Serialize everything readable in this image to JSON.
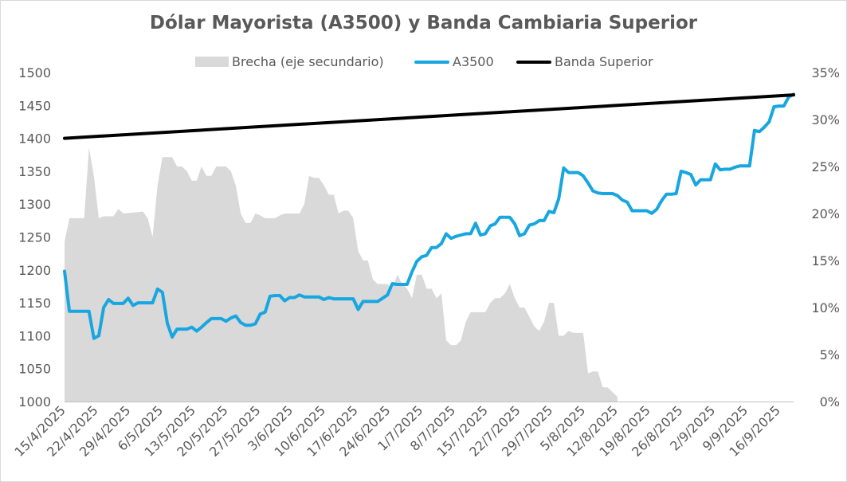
{
  "chart_data": {
    "type": "line",
    "title": "Dólar Mayorista (A3500) y Banda Cambiaria Superior",
    "legend_position": "top",
    "grid": false,
    "y_left": {
      "min": 1000,
      "max": 1500,
      "step": 50,
      "ticks": [
        "1000",
        "1050",
        "1100",
        "1150",
        "1200",
        "1250",
        "1300",
        "1350",
        "1400",
        "1450",
        "1500"
      ]
    },
    "y_right": {
      "min": 0,
      "max": 35,
      "step": 5,
      "ticks": [
        "0%",
        "5%",
        "10%",
        "15%",
        "20%",
        "25%",
        "30%",
        "35%"
      ]
    },
    "x_ticks": [
      "15/4/2025",
      "22/4/2025",
      "29/4/2025",
      "6/5/2025",
      "13/5/2025",
      "20/5/2025",
      "27/5/2025",
      "3/6/2025",
      "10/6/2025",
      "17/6/2025",
      "24/6/2025",
      "1/7/2025",
      "8/7/2025",
      "15/7/2025",
      "22/7/2025",
      "29/7/2025",
      "5/8/2025",
      "12/8/2025",
      "19/8/2025",
      "26/8/2025",
      "2/9/2025",
      "9/9/2025",
      "16/9/2025"
    ],
    "x_start": "15/4/2025",
    "x_end": "17/9/2025",
    "series": [
      {
        "name": "Brecha (eje secundario)",
        "kind": "area",
        "axis": "right",
        "color": "#d9d9d9",
        "points": [
          [
            0,
            17
          ],
          [
            1,
            19.5
          ],
          [
            4,
            19.5
          ],
          [
            5,
            27
          ],
          [
            6,
            24
          ],
          [
            7,
            19.5
          ],
          [
            8,
            19.7
          ],
          [
            10,
            19.7
          ],
          [
            11,
            20.5
          ],
          [
            12,
            20
          ],
          [
            16,
            20.2
          ],
          [
            17,
            19.5
          ],
          [
            18,
            17.5
          ],
          [
            19,
            23
          ],
          [
            20,
            26
          ],
          [
            22,
            26
          ],
          [
            23,
            25
          ],
          [
            24,
            25
          ],
          [
            25,
            24.5
          ],
          [
            26,
            23.5
          ],
          [
            27,
            23.5
          ],
          [
            28,
            25
          ],
          [
            29,
            24
          ],
          [
            30,
            24
          ],
          [
            31,
            25
          ],
          [
            33,
            25
          ],
          [
            34,
            24.5
          ],
          [
            35,
            23
          ],
          [
            36,
            20
          ],
          [
            37,
            19
          ],
          [
            38,
            19
          ],
          [
            39,
            20
          ],
          [
            40,
            19.8
          ],
          [
            41,
            19.5
          ],
          [
            43,
            19.5
          ],
          [
            44,
            19.8
          ],
          [
            45,
            20
          ],
          [
            46,
            20
          ],
          [
            47,
            20
          ],
          [
            48,
            20
          ],
          [
            49,
            21
          ],
          [
            50,
            24
          ],
          [
            51,
            23.8
          ],
          [
            52,
            23.8
          ],
          [
            53,
            23
          ],
          [
            54,
            22
          ],
          [
            55,
            22
          ],
          [
            56,
            20
          ],
          [
            57,
            20.3
          ],
          [
            58,
            20.3
          ],
          [
            59,
            19.5
          ],
          [
            60,
            16
          ],
          [
            61,
            15
          ],
          [
            62,
            15
          ],
          [
            63,
            13
          ],
          [
            64,
            12.5
          ],
          [
            65,
            12.5
          ],
          [
            66,
            12.5
          ],
          [
            67,
            12
          ],
          [
            68,
            13.5
          ],
          [
            69,
            12.5
          ],
          [
            70,
            12
          ],
          [
            71,
            11
          ],
          [
            72,
            13.5
          ],
          [
            73,
            13.5
          ],
          [
            74,
            12
          ],
          [
            75,
            12
          ],
          [
            76,
            11
          ],
          [
            77,
            11.5
          ],
          [
            78,
            6.5
          ],
          [
            79,
            6
          ],
          [
            80,
            6
          ],
          [
            81,
            6.5
          ],
          [
            82,
            8.5
          ],
          [
            83,
            9.5
          ],
          [
            84,
            9.5
          ],
          [
            85,
            9.5
          ],
          [
            86,
            9.5
          ],
          [
            87,
            10.5
          ],
          [
            88,
            11
          ],
          [
            89,
            11
          ],
          [
            90,
            11.5
          ],
          [
            91,
            12.5
          ],
          [
            92,
            11
          ],
          [
            93,
            10
          ],
          [
            94,
            10
          ],
          [
            95,
            9
          ],
          [
            96,
            8
          ],
          [
            97,
            7.5
          ],
          [
            98,
            8.5
          ],
          [
            99,
            10.5
          ],
          [
            100,
            10.5
          ],
          [
            101,
            7
          ],
          [
            102,
            7
          ],
          [
            103,
            7.5
          ],
          [
            104,
            7.3
          ],
          [
            105,
            7.3
          ],
          [
            106,
            7.3
          ],
          [
            107,
            3
          ],
          [
            108,
            3.2
          ],
          [
            109,
            3.2
          ],
          [
            110,
            1.5
          ],
          [
            111,
            1.5
          ],
          [
            112,
            1
          ],
          [
            113,
            0.5
          ]
        ]
      },
      {
        "name": "A3500",
        "kind": "line",
        "axis": "left",
        "color": "#18a6e0",
        "points": [
          [
            0,
            1198
          ],
          [
            1,
            1137
          ],
          [
            5,
            1137
          ],
          [
            6,
            1096
          ],
          [
            7,
            1100
          ],
          [
            8,
            1143
          ],
          [
            9,
            1155
          ],
          [
            10,
            1149
          ],
          [
            12,
            1149
          ],
          [
            13,
            1157
          ],
          [
            14,
            1146
          ],
          [
            15,
            1150
          ],
          [
            16,
            1150
          ],
          [
            17,
            1150
          ],
          [
            18,
            1150
          ],
          [
            19,
            1171
          ],
          [
            20,
            1166
          ],
          [
            21,
            1119
          ],
          [
            22,
            1098
          ],
          [
            23,
            1110
          ],
          [
            24,
            1110
          ],
          [
            25,
            1110
          ],
          [
            26,
            1113
          ],
          [
            27,
            1107
          ],
          [
            28,
            1113
          ],
          [
            29,
            1120
          ],
          [
            30,
            1126
          ],
          [
            31,
            1126
          ],
          [
            32,
            1126
          ],
          [
            33,
            1122
          ],
          [
            34,
            1127
          ],
          [
            35,
            1130
          ],
          [
            36,
            1120
          ],
          [
            37,
            1116
          ],
          [
            38,
            1116
          ],
          [
            39,
            1118
          ],
          [
            40,
            1133
          ],
          [
            41,
            1136
          ],
          [
            42,
            1160
          ],
          [
            43,
            1161
          ],
          [
            44,
            1161
          ],
          [
            45,
            1153
          ],
          [
            46,
            1158
          ],
          [
            47,
            1158
          ],
          [
            48,
            1162
          ],
          [
            49,
            1159
          ],
          [
            50,
            1159
          ],
          [
            51,
            1159
          ],
          [
            52,
            1159
          ],
          [
            53,
            1155
          ],
          [
            54,
            1158
          ],
          [
            55,
            1156
          ],
          [
            56,
            1156
          ],
          [
            57,
            1156
          ],
          [
            58,
            1156
          ],
          [
            59,
            1156
          ],
          [
            60,
            1140
          ],
          [
            61,
            1152
          ],
          [
            62,
            1152
          ],
          [
            63,
            1152
          ],
          [
            64,
            1152
          ],
          [
            65,
            1157
          ],
          [
            66,
            1162
          ],
          [
            67,
            1179
          ],
          [
            68,
            1178
          ],
          [
            69,
            1178
          ],
          [
            70,
            1178
          ],
          [
            71,
            1197
          ],
          [
            72,
            1213
          ],
          [
            73,
            1220
          ],
          [
            74,
            1222
          ],
          [
            75,
            1234
          ],
          [
            76,
            1234
          ],
          [
            77,
            1240
          ],
          [
            78,
            1255
          ],
          [
            79,
            1248
          ],
          [
            80,
            1251
          ],
          [
            81,
            1253
          ],
          [
            82,
            1255
          ],
          [
            83,
            1255
          ],
          [
            84,
            1271
          ],
          [
            85,
            1253
          ],
          [
            86,
            1255
          ],
          [
            87,
            1267
          ],
          [
            88,
            1270
          ],
          [
            89,
            1280
          ],
          [
            90,
            1280
          ],
          [
            91,
            1280
          ],
          [
            92,
            1270
          ],
          [
            93,
            1252
          ],
          [
            94,
            1255
          ],
          [
            95,
            1268
          ],
          [
            96,
            1270
          ],
          [
            97,
            1275
          ],
          [
            98,
            1275
          ],
          [
            99,
            1289
          ],
          [
            100,
            1287
          ],
          [
            101,
            1308
          ],
          [
            102,
            1355
          ],
          [
            103,
            1348
          ],
          [
            104,
            1348
          ],
          [
            105,
            1348
          ],
          [
            106,
            1343
          ],
          [
            107,
            1332
          ],
          [
            108,
            1320
          ],
          [
            109,
            1317
          ],
          [
            110,
            1316
          ],
          [
            111,
            1316
          ],
          [
            112,
            1316
          ],
          [
            113,
            1313
          ],
          [
            114,
            1306
          ],
          [
            115,
            1303
          ],
          [
            116,
            1290
          ],
          [
            117,
            1290
          ],
          [
            118,
            1290
          ],
          [
            119,
            1290
          ],
          [
            120,
            1286
          ],
          [
            121,
            1292
          ],
          [
            122,
            1305
          ],
          [
            123,
            1315
          ],
          [
            124,
            1315
          ],
          [
            125,
            1316
          ],
          [
            126,
            1350
          ],
          [
            127,
            1348
          ],
          [
            128,
            1345
          ],
          [
            129,
            1329
          ],
          [
            130,
            1337
          ],
          [
            131,
            1337
          ],
          [
            132,
            1337
          ],
          [
            133,
            1361
          ],
          [
            134,
            1352
          ],
          [
            135,
            1353
          ],
          [
            136,
            1353
          ],
          [
            137,
            1356
          ],
          [
            138,
            1358
          ],
          [
            139,
            1358
          ],
          [
            140,
            1358
          ],
          [
            141,
            1412
          ],
          [
            142,
            1410
          ],
          [
            143,
            1417
          ],
          [
            144,
            1425
          ],
          [
            145,
            1448
          ],
          [
            146,
            1449
          ],
          [
            147,
            1449
          ],
          [
            148,
            1463
          ],
          [
            149,
            1467
          ]
        ]
      },
      {
        "name": "Banda Superior",
        "kind": "line",
        "axis": "left",
        "color": "#000000",
        "points": [
          [
            0,
            1400
          ],
          [
            149,
            1466
          ]
        ]
      }
    ]
  }
}
